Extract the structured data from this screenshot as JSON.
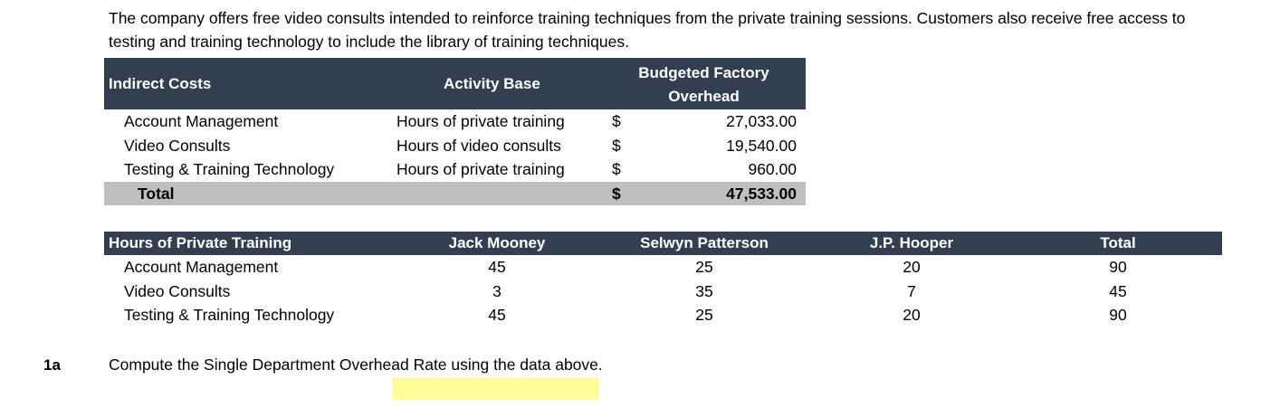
{
  "intro": "The company offers free video consults intended to reinforce training techniques from the private training sessions. Customers also receive free access to testing and training technology to include the library of training techniques.",
  "table1": {
    "headers": [
      "Indirect Costs",
      "Activity Base",
      "Budgeted Factory",
      "Overhead"
    ],
    "rows": [
      [
        "Account Management",
        "Hours of private training",
        "$",
        "27,033.00"
      ],
      [
        "Video Consults",
        "Hours of video consults",
        "$",
        "19,540.00"
      ],
      [
        "Testing & Training Technology",
        "Hours of private training",
        "$",
        "960.00"
      ]
    ],
    "total": [
      "Total",
      "$",
      "47,533.00"
    ]
  },
  "table2": {
    "headers": [
      "Hours of Private Training",
      "Jack Mooney",
      "Selwyn Patterson",
      "J.P. Hooper",
      "Total"
    ],
    "rows": [
      [
        "Account Management",
        "45",
        "25",
        "20",
        "90"
      ],
      [
        "Video Consults",
        "3",
        "35",
        "7",
        "45"
      ],
      [
        "Testing & Training Technology",
        "45",
        "25",
        "20",
        "90"
      ]
    ]
  },
  "question": {
    "label": "1a",
    "text": "Compute the Single Department Overhead Rate using the data above.",
    "answer_value": ""
  }
}
